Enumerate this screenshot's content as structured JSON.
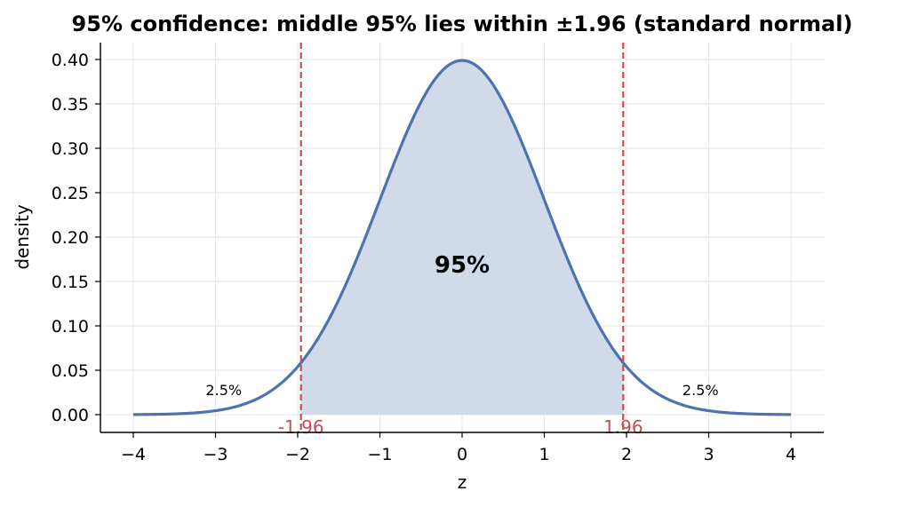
{
  "chart_data": {
    "type": "area",
    "title": "95% confidence: middle 95% lies within ±1.96 (standard normal)",
    "xlabel": "z",
    "ylabel": "density",
    "xlim": [
      -4.4,
      4.4
    ],
    "ylim": [
      -0.02,
      0.42
    ],
    "x_ticks": [
      -4,
      -3,
      -2,
      -1,
      0,
      1,
      2,
      3,
      4
    ],
    "x_tick_labels": [
      "−4",
      "−3",
      "−2",
      "−1",
      "0",
      "1",
      "2",
      "3",
      "4"
    ],
    "y_ticks": [
      0.0,
      0.05,
      0.1,
      0.15,
      0.2,
      0.25,
      0.3,
      0.35,
      0.4
    ],
    "y_tick_labels": [
      "0.00",
      "0.05",
      "0.10",
      "0.15",
      "0.20",
      "0.25",
      "0.30",
      "0.35",
      "0.40"
    ],
    "grid": true,
    "curve": {
      "x": [
        -4.0,
        -3.5,
        -3.0,
        -2.5,
        -2.0,
        -1.96,
        -1.5,
        -1.0,
        -0.5,
        0.0,
        0.5,
        1.0,
        1.5,
        1.96,
        2.0,
        2.5,
        3.0,
        3.5,
        4.0
      ],
      "y": [
        0.0001,
        0.0009,
        0.0044,
        0.0175,
        0.054,
        0.0584,
        0.1295,
        0.242,
        0.3521,
        0.3989,
        0.3521,
        0.242,
        0.1295,
        0.0584,
        0.054,
        0.0175,
        0.0044,
        0.0009,
        0.0001
      ]
    },
    "shaded_region": [
      -1.96,
      1.96
    ],
    "critical_values": [
      {
        "x": -1.96,
        "label": "-1.96"
      },
      {
        "x": 1.96,
        "label": "1.96"
      }
    ],
    "annotations": [
      {
        "text": "95%",
        "x": 0.0,
        "y": 0.16
      },
      {
        "text": "2.5%",
        "x": -2.9,
        "y": 0.022
      },
      {
        "text": "2.5%",
        "x": 2.9,
        "y": 0.022
      }
    ],
    "colors": {
      "curve": "#4c72b0",
      "fill": "#d0dae9",
      "critical": "#c44e52",
      "grid": "#e6e6e6",
      "axis": "#000000"
    }
  }
}
